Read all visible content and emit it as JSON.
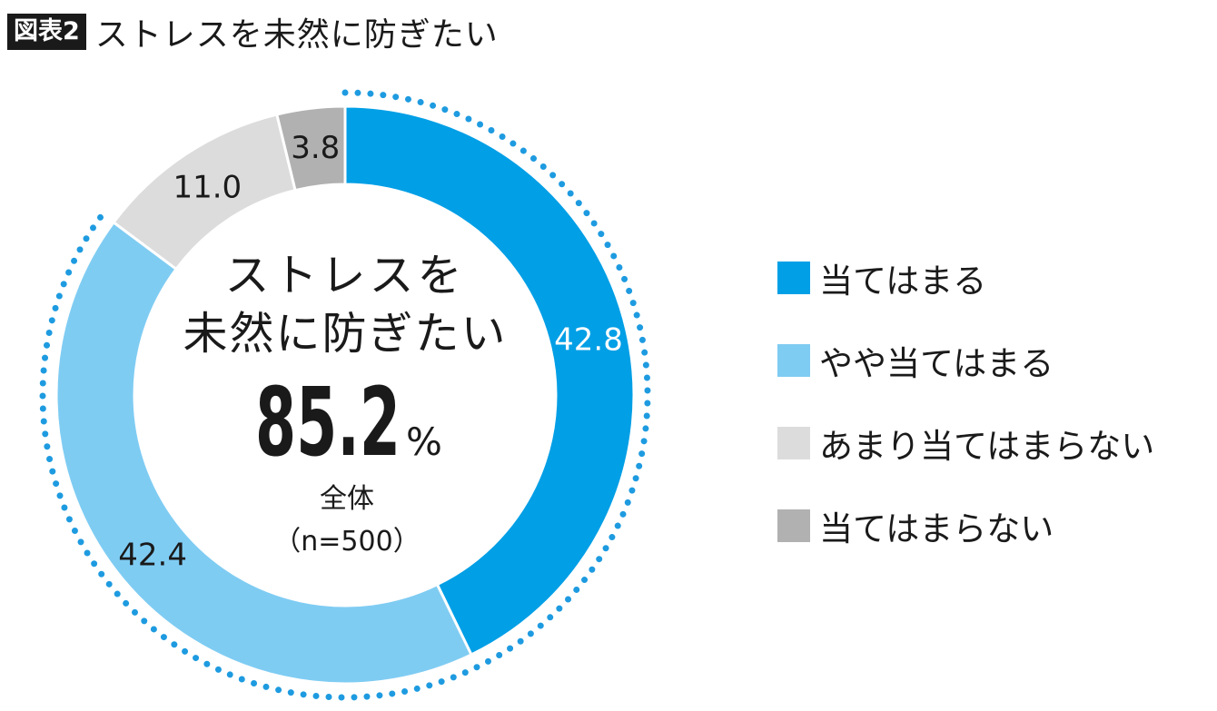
{
  "header": {
    "tag": "図表2",
    "title": "ストレスを未然に防ぎたい"
  },
  "center": {
    "line1": "ストレスを",
    "line2": "未然に防ぎたい",
    "total_value": "85.2",
    "total_unit": "%",
    "group": "全体",
    "sample": "（n=500）"
  },
  "colors": {
    "highlight_ring": "#1e9be0"
  },
  "chart_data": {
    "type": "pie",
    "title": "ストレスを未然に防ぎたい",
    "categories": [
      "当てはまる",
      "やや当てはまる",
      "あまり当てはまらない",
      "当てはまらない"
    ],
    "values": [
      42.8,
      42.4,
      11.0,
      3.8
    ],
    "labels": [
      "42.8",
      "42.4",
      "11.0",
      "3.8"
    ],
    "colors": [
      "#009fe6",
      "#7fccf3",
      "#dcdcdc",
      "#b1b1b1"
    ],
    "label_colors": [
      "#ffffff",
      "#1a1a1a",
      "#1a1a1a",
      "#1a1a1a"
    ],
    "legend_position": "right"
  }
}
